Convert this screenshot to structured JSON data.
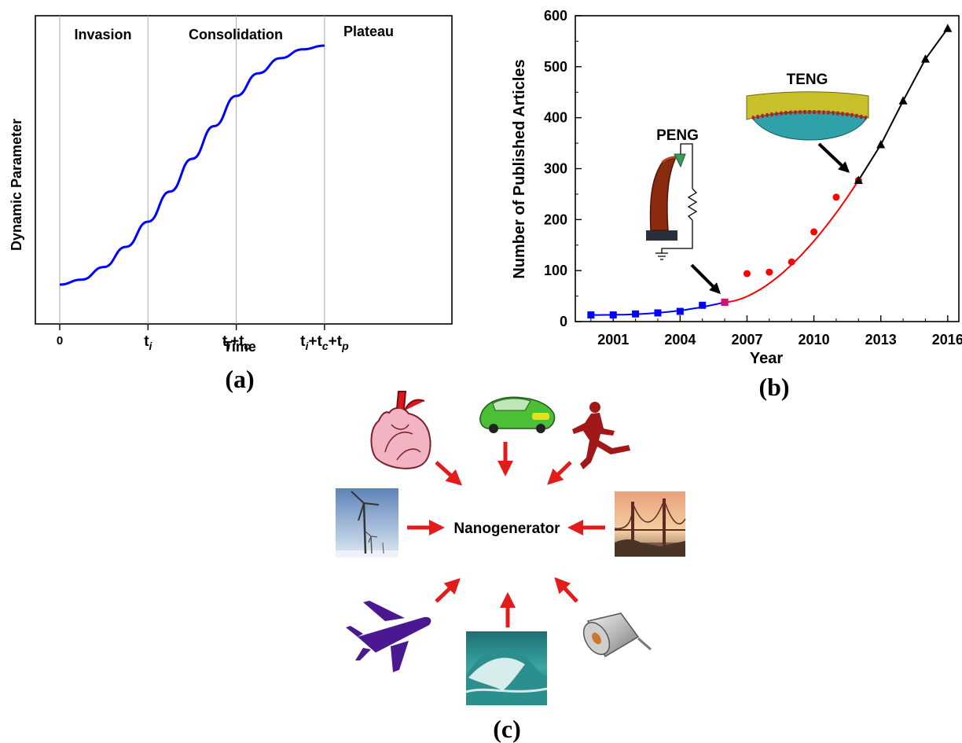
{
  "chart_data": [
    {
      "panel": "(a)",
      "type": "line",
      "xlabel": "Time",
      "ylabel": "Dynamic Parameter",
      "x_ticks": [
        {
          "base": "0",
          "sub1": "",
          "mid": "",
          "sub2": "",
          "mid2": "",
          "sub3": ""
        },
        {
          "base": "t",
          "sub1": "i",
          "mid": "",
          "sub2": "",
          "mid2": "",
          "sub3": ""
        },
        {
          "base": "t",
          "sub1": "i",
          "mid": "+t",
          "sub2": "c",
          "mid2": "",
          "sub3": ""
        },
        {
          "base": "t",
          "sub1": "i",
          "mid": "+t",
          "sub2": "c",
          "mid2": "+t",
          "sub3": "p"
        }
      ],
      "phases": [
        "Invasion",
        "Consolidation",
        "Plateau"
      ],
      "series": [
        {
          "color": "#0000ff",
          "x": [
            0,
            0.25,
            0.5,
            0.75,
            1.0,
            1.25,
            1.5,
            1.75,
            2.0,
            2.25,
            2.5,
            2.75,
            3.0
          ],
          "y": [
            0.05,
            0.07,
            0.12,
            0.2,
            0.3,
            0.42,
            0.55,
            0.68,
            0.8,
            0.89,
            0.95,
            0.985,
            1.0
          ]
        }
      ]
    },
    {
      "panel": "(b)",
      "type": "line",
      "xlabel": "Year",
      "ylabel": "Number of Published Articles",
      "xlim": [
        1999.3,
        2016.5
      ],
      "ylim": [
        0,
        600
      ],
      "x_ticks": [
        2001,
        2004,
        2007,
        2010,
        2013,
        2016
      ],
      "y_ticks": [
        0,
        100,
        200,
        300,
        400,
        500,
        600
      ],
      "series": [
        {
          "color": "#0000ff",
          "marker": "square",
          "x": [
            2000,
            2001,
            2002,
            2003,
            2004,
            2005,
            2006
          ],
          "y": [
            13,
            13,
            15,
            17,
            20,
            32,
            38
          ]
        },
        {
          "color": "#ff0000",
          "marker": "circle",
          "x": [
            2006,
            2007,
            2008,
            2009,
            2010,
            2011,
            2012
          ],
          "y": [
            38,
            94,
            97,
            117,
            176,
            244,
            277
          ]
        },
        {
          "color": "#000000",
          "marker": "triangle",
          "x": [
            2012,
            2013,
            2014,
            2015,
            2016
          ],
          "y": [
            277,
            347,
            433,
            515,
            575
          ]
        }
      ],
      "annotations": [
        "PENG",
        "TENG"
      ]
    }
  ],
  "diagram_c": {
    "panel": "(c)",
    "center": "Nanogenerator",
    "sources": [
      "heart",
      "car",
      "runner",
      "wind turbines",
      "bridge",
      "airplane",
      "ocean wave",
      "motor"
    ]
  }
}
